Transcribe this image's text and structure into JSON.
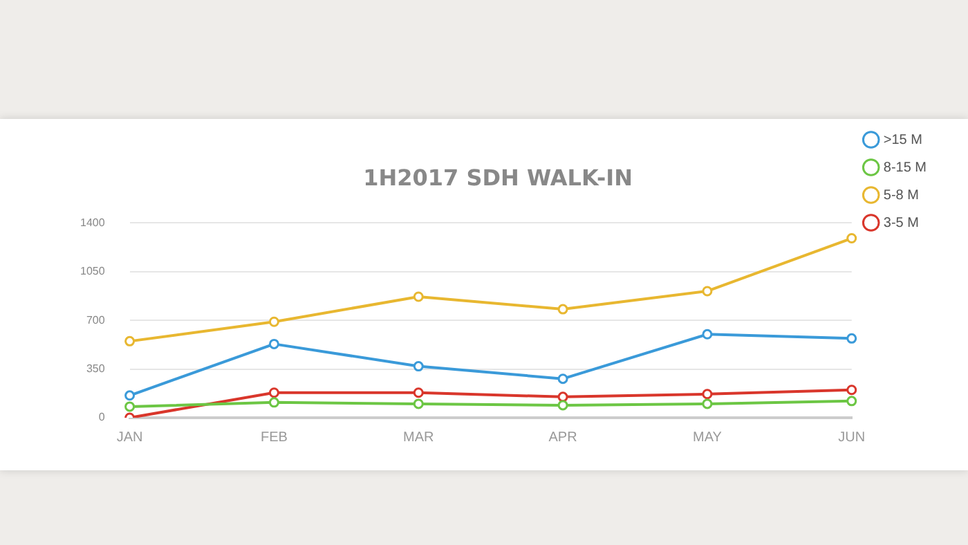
{
  "chart_data": {
    "type": "line",
    "title": "1H2017 SDH WALK-IN",
    "categories": [
      "JAN",
      "FEB",
      "MAR",
      "APR",
      "MAY",
      "JUN"
    ],
    "series": [
      {
        "name": ">15 M",
        "color": "#3a9ad9",
        "values": [
          160,
          530,
          370,
          280,
          600,
          570
        ]
      },
      {
        "name": "8-15 M",
        "color": "#6cc644",
        "values": [
          80,
          110,
          100,
          90,
          100,
          120
        ]
      },
      {
        "name": "5-8 M",
        "color": "#e8b730",
        "values": [
          550,
          690,
          870,
          780,
          910,
          1290
        ]
      },
      {
        "name": "3-5 M",
        "color": "#d9362b",
        "values": [
          0,
          180,
          180,
          150,
          170,
          200
        ]
      }
    ],
    "ylim": [
      0,
      1400
    ],
    "yticks": [
      0,
      350,
      700,
      1050,
      1400
    ],
    "grid": "y",
    "legend": "right",
    "marker": "circle"
  }
}
